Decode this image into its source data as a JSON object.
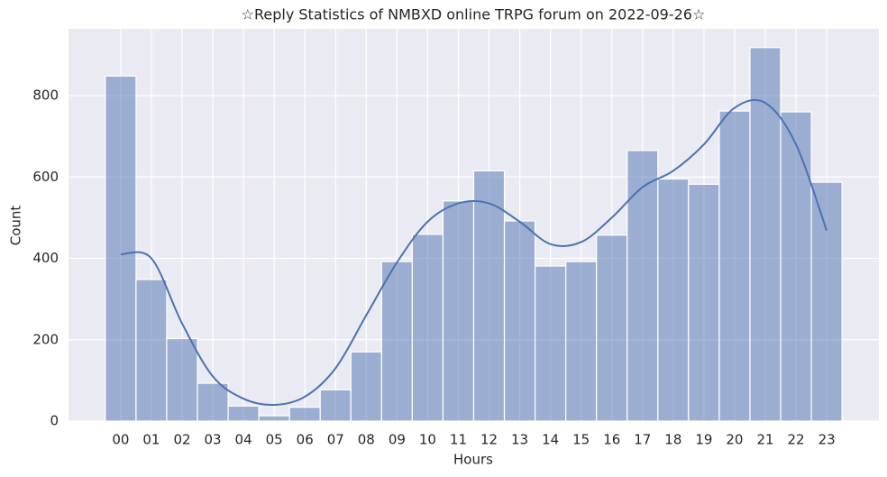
{
  "chart_data": {
    "type": "histogram",
    "title": "☆Reply Statistics of NMBXD online TRPG forum on 2022-09-26☆",
    "x_label": "Hours",
    "y_label": "Count",
    "categories": [
      "00",
      "01",
      "02",
      "03",
      "04",
      "05",
      "06",
      "07",
      "08",
      "09",
      "10",
      "11",
      "12",
      "13",
      "14",
      "15",
      "16",
      "17",
      "18",
      "19",
      "20",
      "21",
      "22",
      "23"
    ],
    "values": [
      848,
      348,
      203,
      93,
      37,
      13,
      34,
      77,
      170,
      392,
      459,
      541,
      615,
      492,
      381,
      392,
      457,
      665,
      595,
      582,
      762,
      918,
      760,
      587
    ],
    "color": "#4c72b0",
    "kde_values": [
      410,
      400,
      240,
      110,
      55,
      40,
      60,
      130,
      260,
      390,
      490,
      535,
      535,
      490,
      435,
      440,
      500,
      575,
      615,
      680,
      770,
      782,
      680,
      468
    ],
    "kde_color": "#4c72b0",
    "ylim": [
      0,
      964
    ],
    "yticks": [
      0,
      200,
      400,
      600,
      800
    ],
    "grid": true
  }
}
